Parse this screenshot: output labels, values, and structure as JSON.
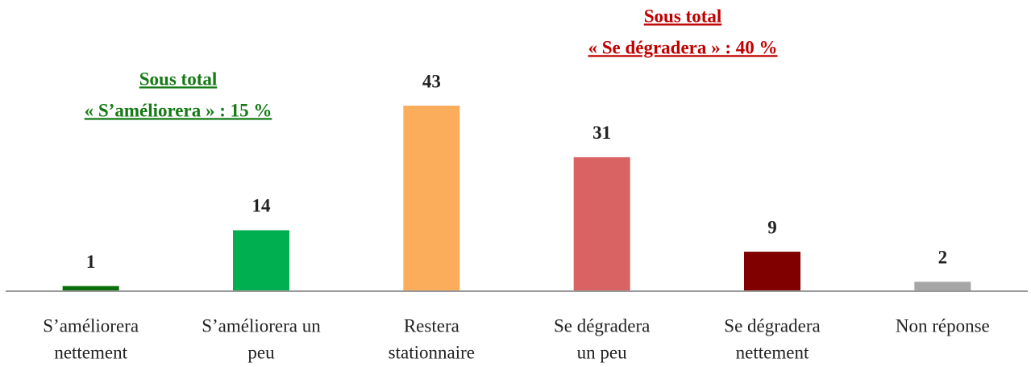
{
  "chart_data": {
    "type": "bar",
    "categories": [
      [
        "S’améliorera",
        "nettement"
      ],
      [
        "S’améliorera un",
        "peu"
      ],
      [
        "Restera",
        "stationnaire"
      ],
      [
        "Se dégradera",
        "un peu"
      ],
      [
        "Se dégradera",
        "nettement"
      ],
      [
        "Non réponse"
      ]
    ],
    "values": [
      1,
      14,
      43,
      31,
      9,
      2
    ],
    "colors": [
      "#0a6e0a",
      "#00b050",
      "#fbad5b",
      "#d96262",
      "#800000",
      "#a6a6a6"
    ],
    "ylim": [
      0,
      43
    ],
    "annotations": [
      {
        "lines": [
          "Sous total",
          "« S’améliorera » : 15 %"
        ],
        "color": "#157a15"
      },
      {
        "lines": [
          "Sous total",
          "« Se dégradera » : 40 %"
        ],
        "color": "#c00000"
      }
    ]
  }
}
